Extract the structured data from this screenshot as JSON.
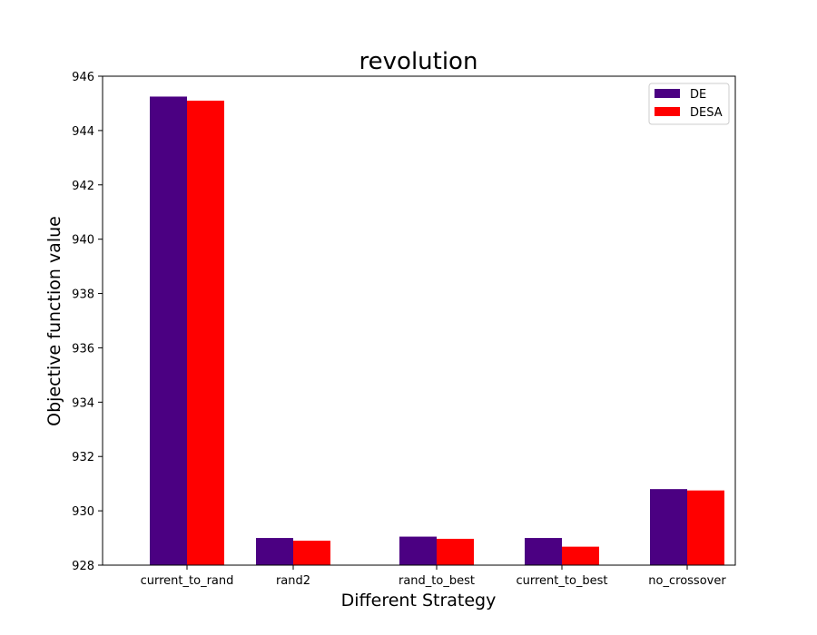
{
  "chart_data": {
    "type": "bar",
    "title": "revolution",
    "xlabel": "Different Strategy",
    "ylabel": "Objective function value",
    "categories": [
      "current_to_rand",
      "rand2",
      "rand_to_best",
      "current_to_best",
      "no_crossover"
    ],
    "series": [
      {
        "name": "DE",
        "color": "#4b0082",
        "values": [
          945.25,
          929.0,
          929.05,
          929.0,
          930.8
        ]
      },
      {
        "name": "DESA",
        "color": "#ff0000",
        "values": [
          945.1,
          928.9,
          928.97,
          928.68,
          930.75
        ]
      }
    ],
    "ylim": [
      928,
      946
    ],
    "yticks": [
      "928",
      "930",
      "932",
      "934",
      "936",
      "938",
      "940",
      "942",
      "944",
      "946"
    ],
    "grid": false,
    "legend_position": "upper right"
  }
}
